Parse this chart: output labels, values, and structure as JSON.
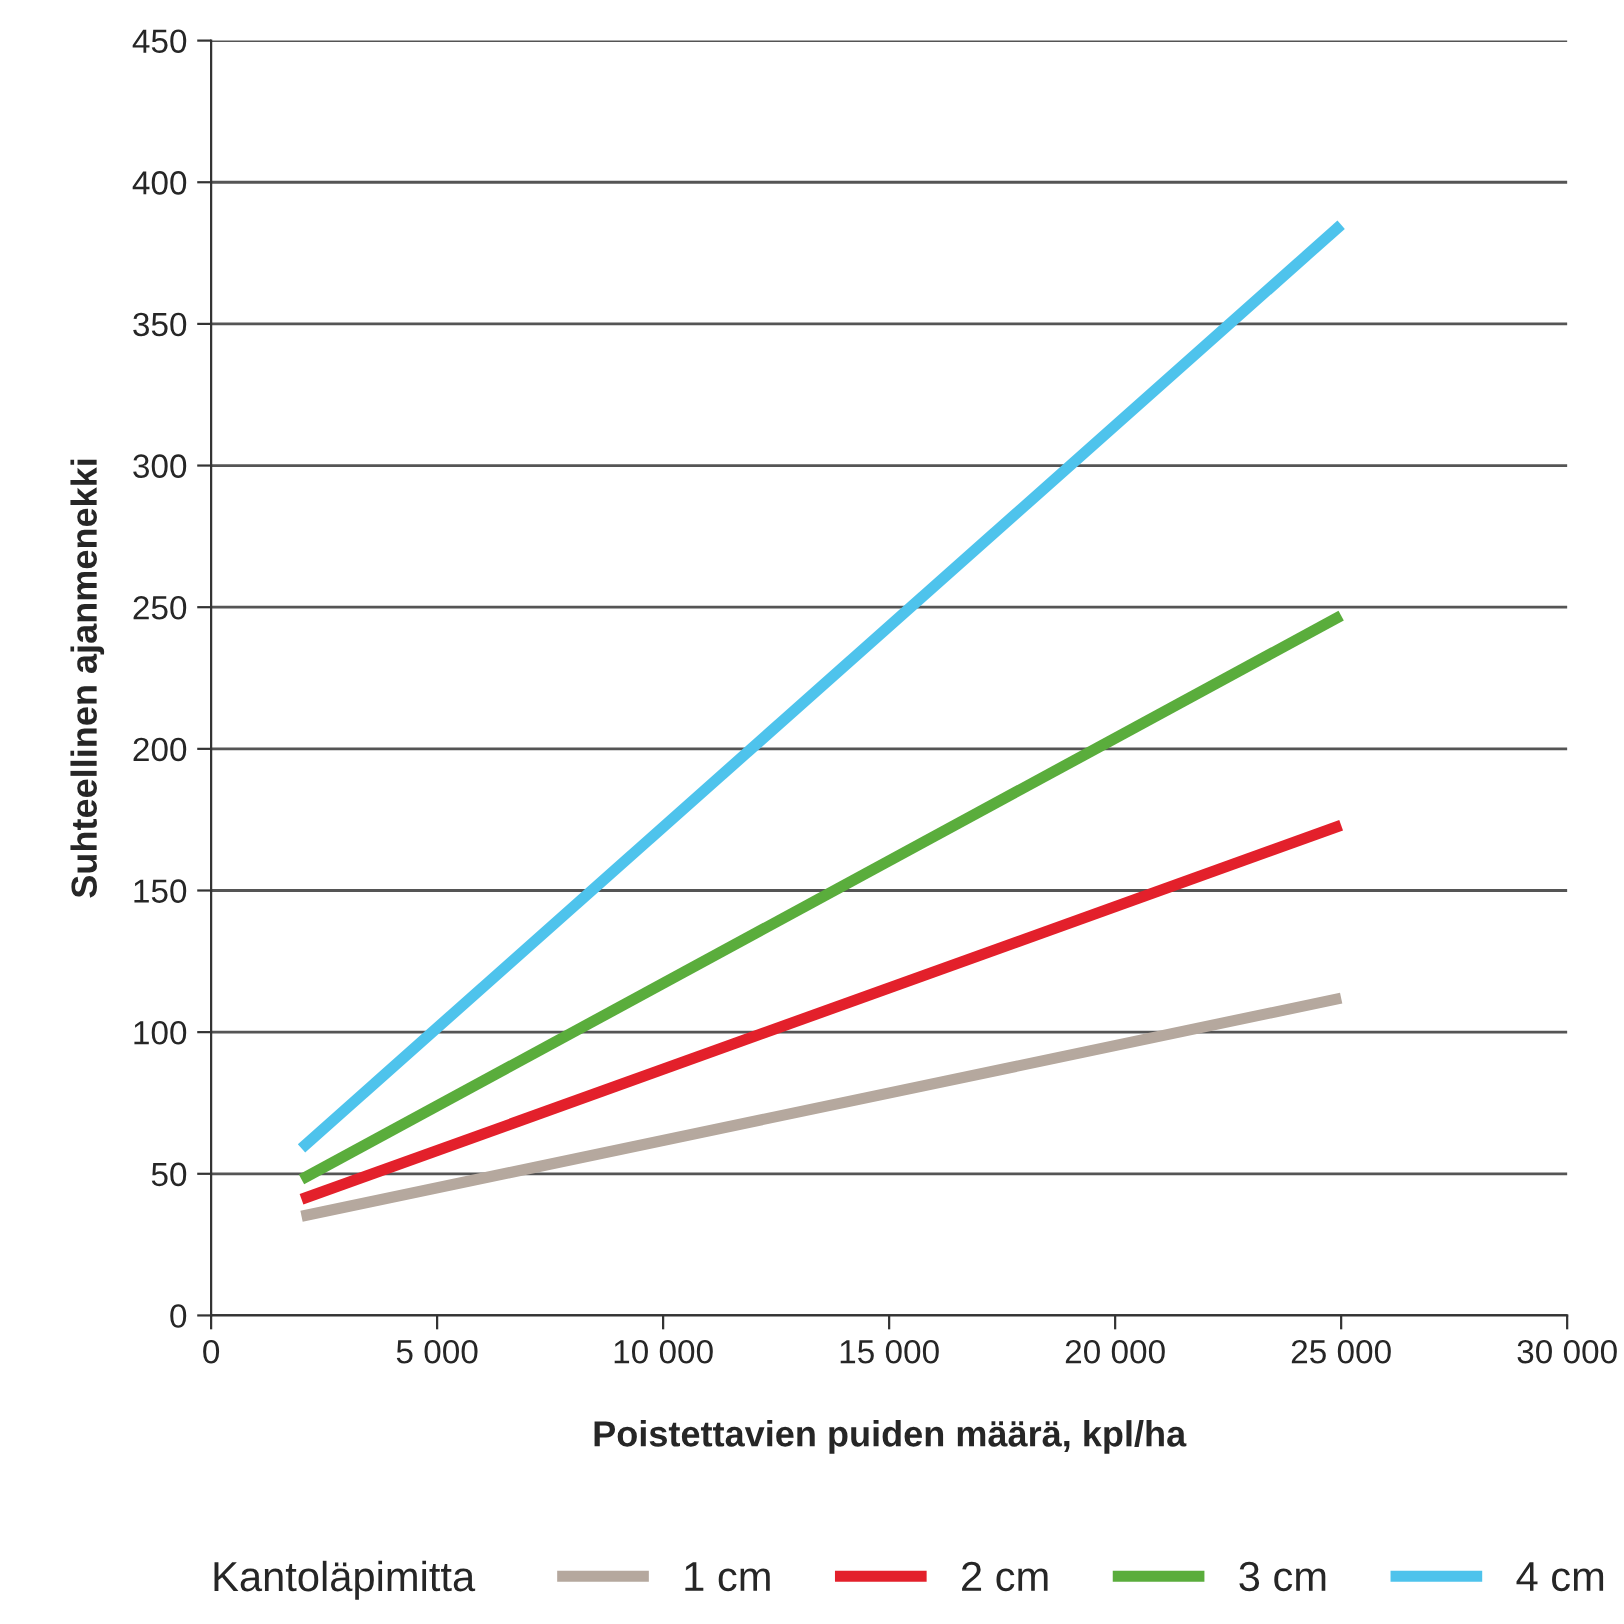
{
  "chart_data": {
    "type": "line",
    "xlabel": "Poistettavien puiden määrä, kpl/ha",
    "ylabel": "Suhteellinen ajanmenekki",
    "legend_title": "Kantoläpimitta",
    "legend": "bottom",
    "grid": "y",
    "marker": "none",
    "line_style": "solid",
    "x": [
      2000,
      25000
    ],
    "series": [
      {
        "name": "1 cm",
        "color": "#b5a89e",
        "values": [
          35,
          112
        ]
      },
      {
        "name": "2 cm",
        "color": "#e3202b",
        "values": [
          41,
          173
        ]
      },
      {
        "name": "3 cm",
        "color": "#5aad3c",
        "values": [
          48,
          247
        ]
      },
      {
        "name": "4 cm",
        "color": "#4ec3ec",
        "values": [
          59,
          385
        ]
      }
    ],
    "xlim": [
      0,
      30000
    ],
    "xticks": [
      0,
      {
        "value": 5000,
        "label": "5 000"
      },
      {
        "value": 10000,
        "label": "10 000"
      },
      {
        "value": 15000,
        "label": "15 000"
      },
      {
        "value": 20000,
        "label": "20 000"
      },
      {
        "value": 25000,
        "label": "25 000"
      },
      {
        "value": 30000,
        "label": "30 000"
      }
    ],
    "ylim": [
      0,
      450
    ],
    "yticks": [
      0,
      50,
      100,
      150,
      200,
      250,
      300,
      350,
      400,
      450
    ]
  }
}
